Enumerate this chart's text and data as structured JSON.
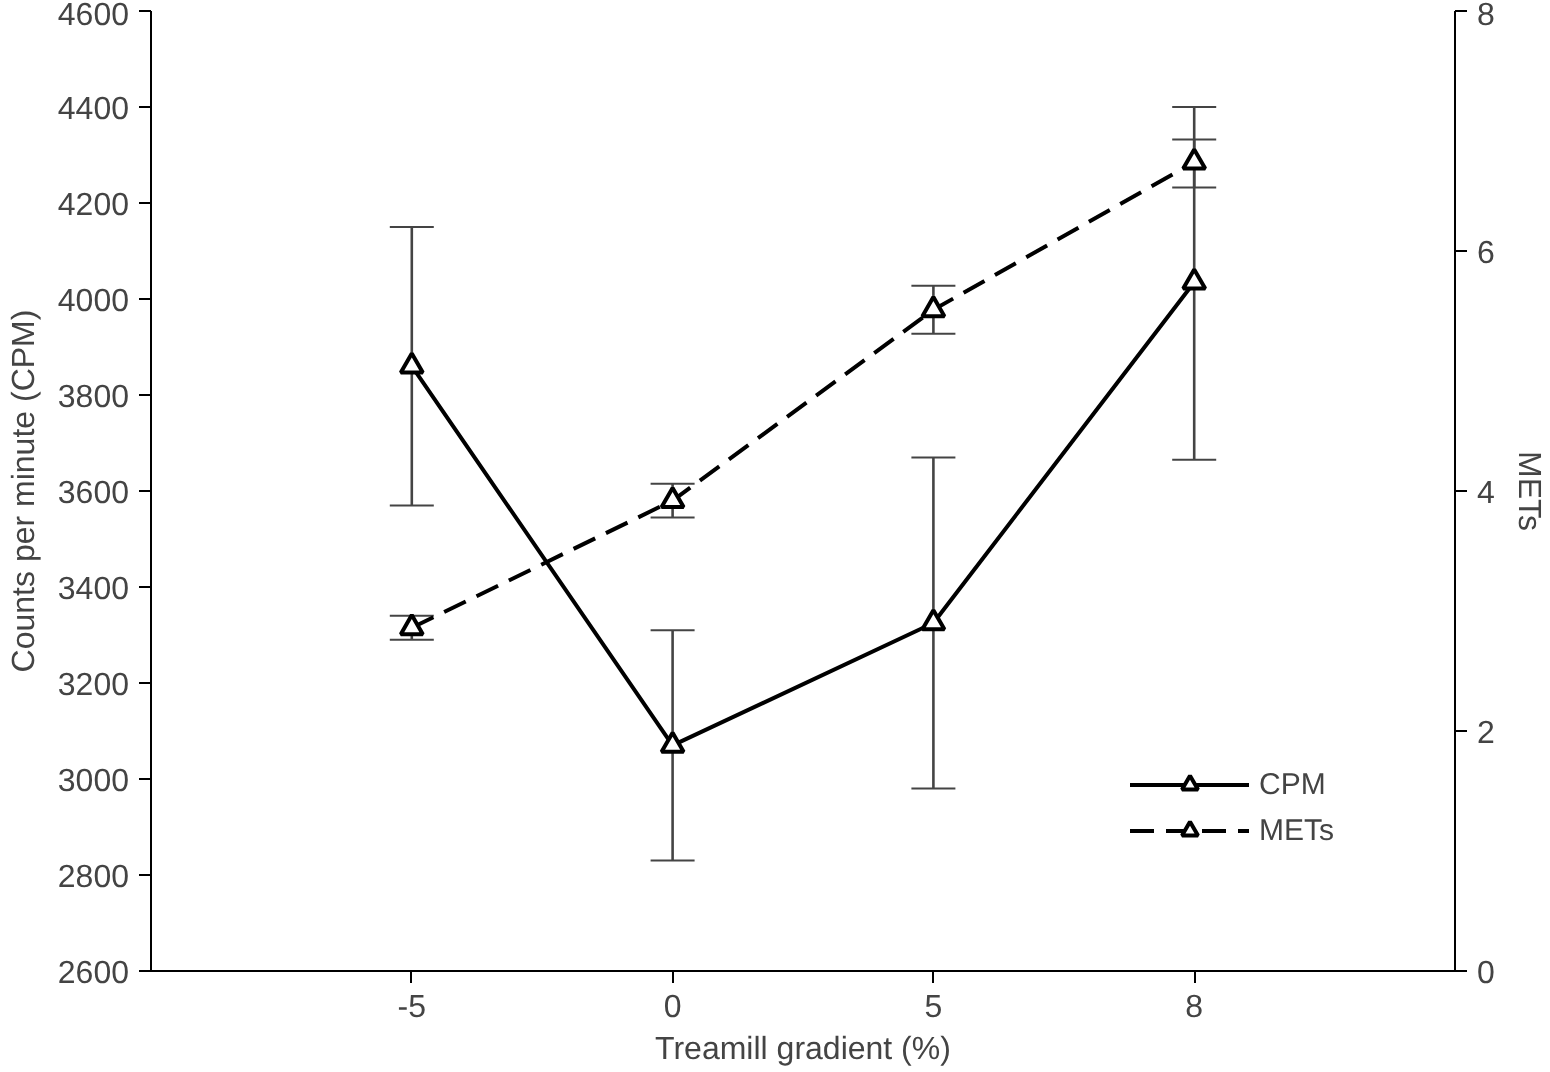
{
  "chart_data": {
    "type": "line",
    "xlabel": "Treamill gradient (%)",
    "ylabel": "Counts per minute (CPM)",
    "y2label": "METs",
    "categories": [
      "-5",
      "0",
      "5",
      "8"
    ],
    "ylim": [
      2600,
      4600
    ],
    "yticks": [
      2600,
      2800,
      3000,
      3200,
      3400,
      3600,
      3800,
      4000,
      4200,
      4400,
      4600
    ],
    "y2lim": [
      0,
      8
    ],
    "y2ticks": [
      0,
      2,
      4,
      6,
      8
    ],
    "marker": "triangle",
    "grid": false,
    "legend": "bottom right",
    "series": [
      {
        "name": "CPM",
        "color": "#000000",
        "line_style": "solid",
        "values": [
          3860,
          3070,
          3325,
          4035
        ],
        "errors": [
          [
            3570,
            4150
          ],
          [
            2830,
            3310
          ],
          [
            2980,
            3670
          ],
          [
            3665,
            4400
          ]
        ]
      },
      {
        "name": "METs",
        "color": "#000000",
        "line_style": "dashed",
        "axis": "y2",
        "values": [
          2.86,
          3.92,
          5.51,
          6.74
        ],
        "errors": [
          [
            2.76,
            2.96
          ],
          [
            3.78,
            4.06
          ],
          [
            5.31,
            5.71
          ],
          [
            6.53,
            6.93
          ]
        ]
      }
    ]
  }
}
